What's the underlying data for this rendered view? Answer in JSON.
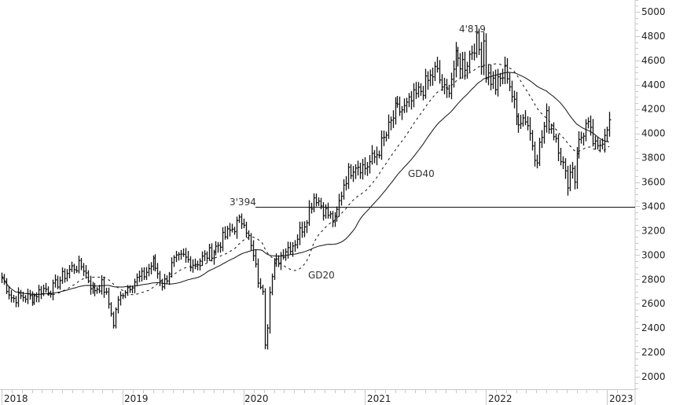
{
  "chart_data": {
    "type": "ohlc",
    "title": "",
    "xlabel": "",
    "ylabel": "",
    "ylim": [
      1900,
      5100
    ],
    "y_ticks": [
      2000,
      2200,
      2400,
      2600,
      2800,
      3000,
      3200,
      3400,
      3600,
      3800,
      4000,
      4200,
      4400,
      4600,
      4800,
      5000
    ],
    "x_ticks": [
      "2018",
      "2019",
      "2020",
      "2021",
      "2022",
      "2023"
    ],
    "grid": false,
    "legend": "none",
    "series": [
      {
        "name": "Price (weekly bars)",
        "style": "ohlc-bars",
        "color": "#111111",
        "monthly_close": {
          "x": [
            "2018-01",
            "2018-02",
            "2018-03",
            "2018-04",
            "2018-05",
            "2018-06",
            "2018-07",
            "2018-08",
            "2018-09",
            "2018-10",
            "2018-11",
            "2018-12",
            "2019-01",
            "2019-02",
            "2019-03",
            "2019-04",
            "2019-05",
            "2019-06",
            "2019-07",
            "2019-08",
            "2019-09",
            "2019-10",
            "2019-11",
            "2019-12",
            "2020-01",
            "2020-02",
            "2020-03",
            "2020-04",
            "2020-05",
            "2020-06",
            "2020-07",
            "2020-08",
            "2020-09",
            "2020-10",
            "2020-11",
            "2020-12",
            "2021-01",
            "2021-02",
            "2021-03",
            "2021-04",
            "2021-05",
            "2021-06",
            "2021-07",
            "2021-08",
            "2021-09",
            "2021-10",
            "2021-11",
            "2021-12",
            "2022-01",
            "2022-02",
            "2022-03",
            "2022-04",
            "2022-05",
            "2022-06",
            "2022-07",
            "2022-08",
            "2022-09",
            "2022-10",
            "2022-11",
            "2022-12",
            "2023-01"
          ],
          "values": [
            2820,
            2640,
            2660,
            2650,
            2720,
            2720,
            2820,
            2900,
            2910,
            2710,
            2760,
            2500,
            2700,
            2780,
            2830,
            2940,
            2750,
            2940,
            2980,
            2930,
            2980,
            3040,
            3140,
            3230,
            3300,
            2950,
            2550,
            2900,
            3040,
            3100,
            3270,
            3500,
            3360,
            3270,
            3620,
            3760,
            3720,
            3810,
            3970,
            4180,
            4200,
            4300,
            4400,
            4520,
            4310,
            4600,
            4570,
            4770,
            4500,
            4380,
            4530,
            4130,
            4130,
            3790,
            4130,
            3960,
            3590,
            3870,
            4080,
            3840,
            4080
          ]
        }
      },
      {
        "name": "GD20",
        "style": "dashed",
        "color": "#111111"
      },
      {
        "name": "GD40",
        "style": "solid",
        "color": "#111111"
      }
    ],
    "annotations": [
      {
        "text": "3'394",
        "value": 3394,
        "type": "horizontal-line"
      },
      {
        "text": "4'819",
        "value": 4819,
        "type": "peak-label"
      },
      {
        "text": "GD20",
        "type": "series-label"
      },
      {
        "text": "GD40",
        "type": "series-label"
      }
    ]
  },
  "labels": {
    "peak_2020": "3'394",
    "peak_2022": "4'819",
    "gd20": "GD20",
    "gd40": "GD40"
  }
}
